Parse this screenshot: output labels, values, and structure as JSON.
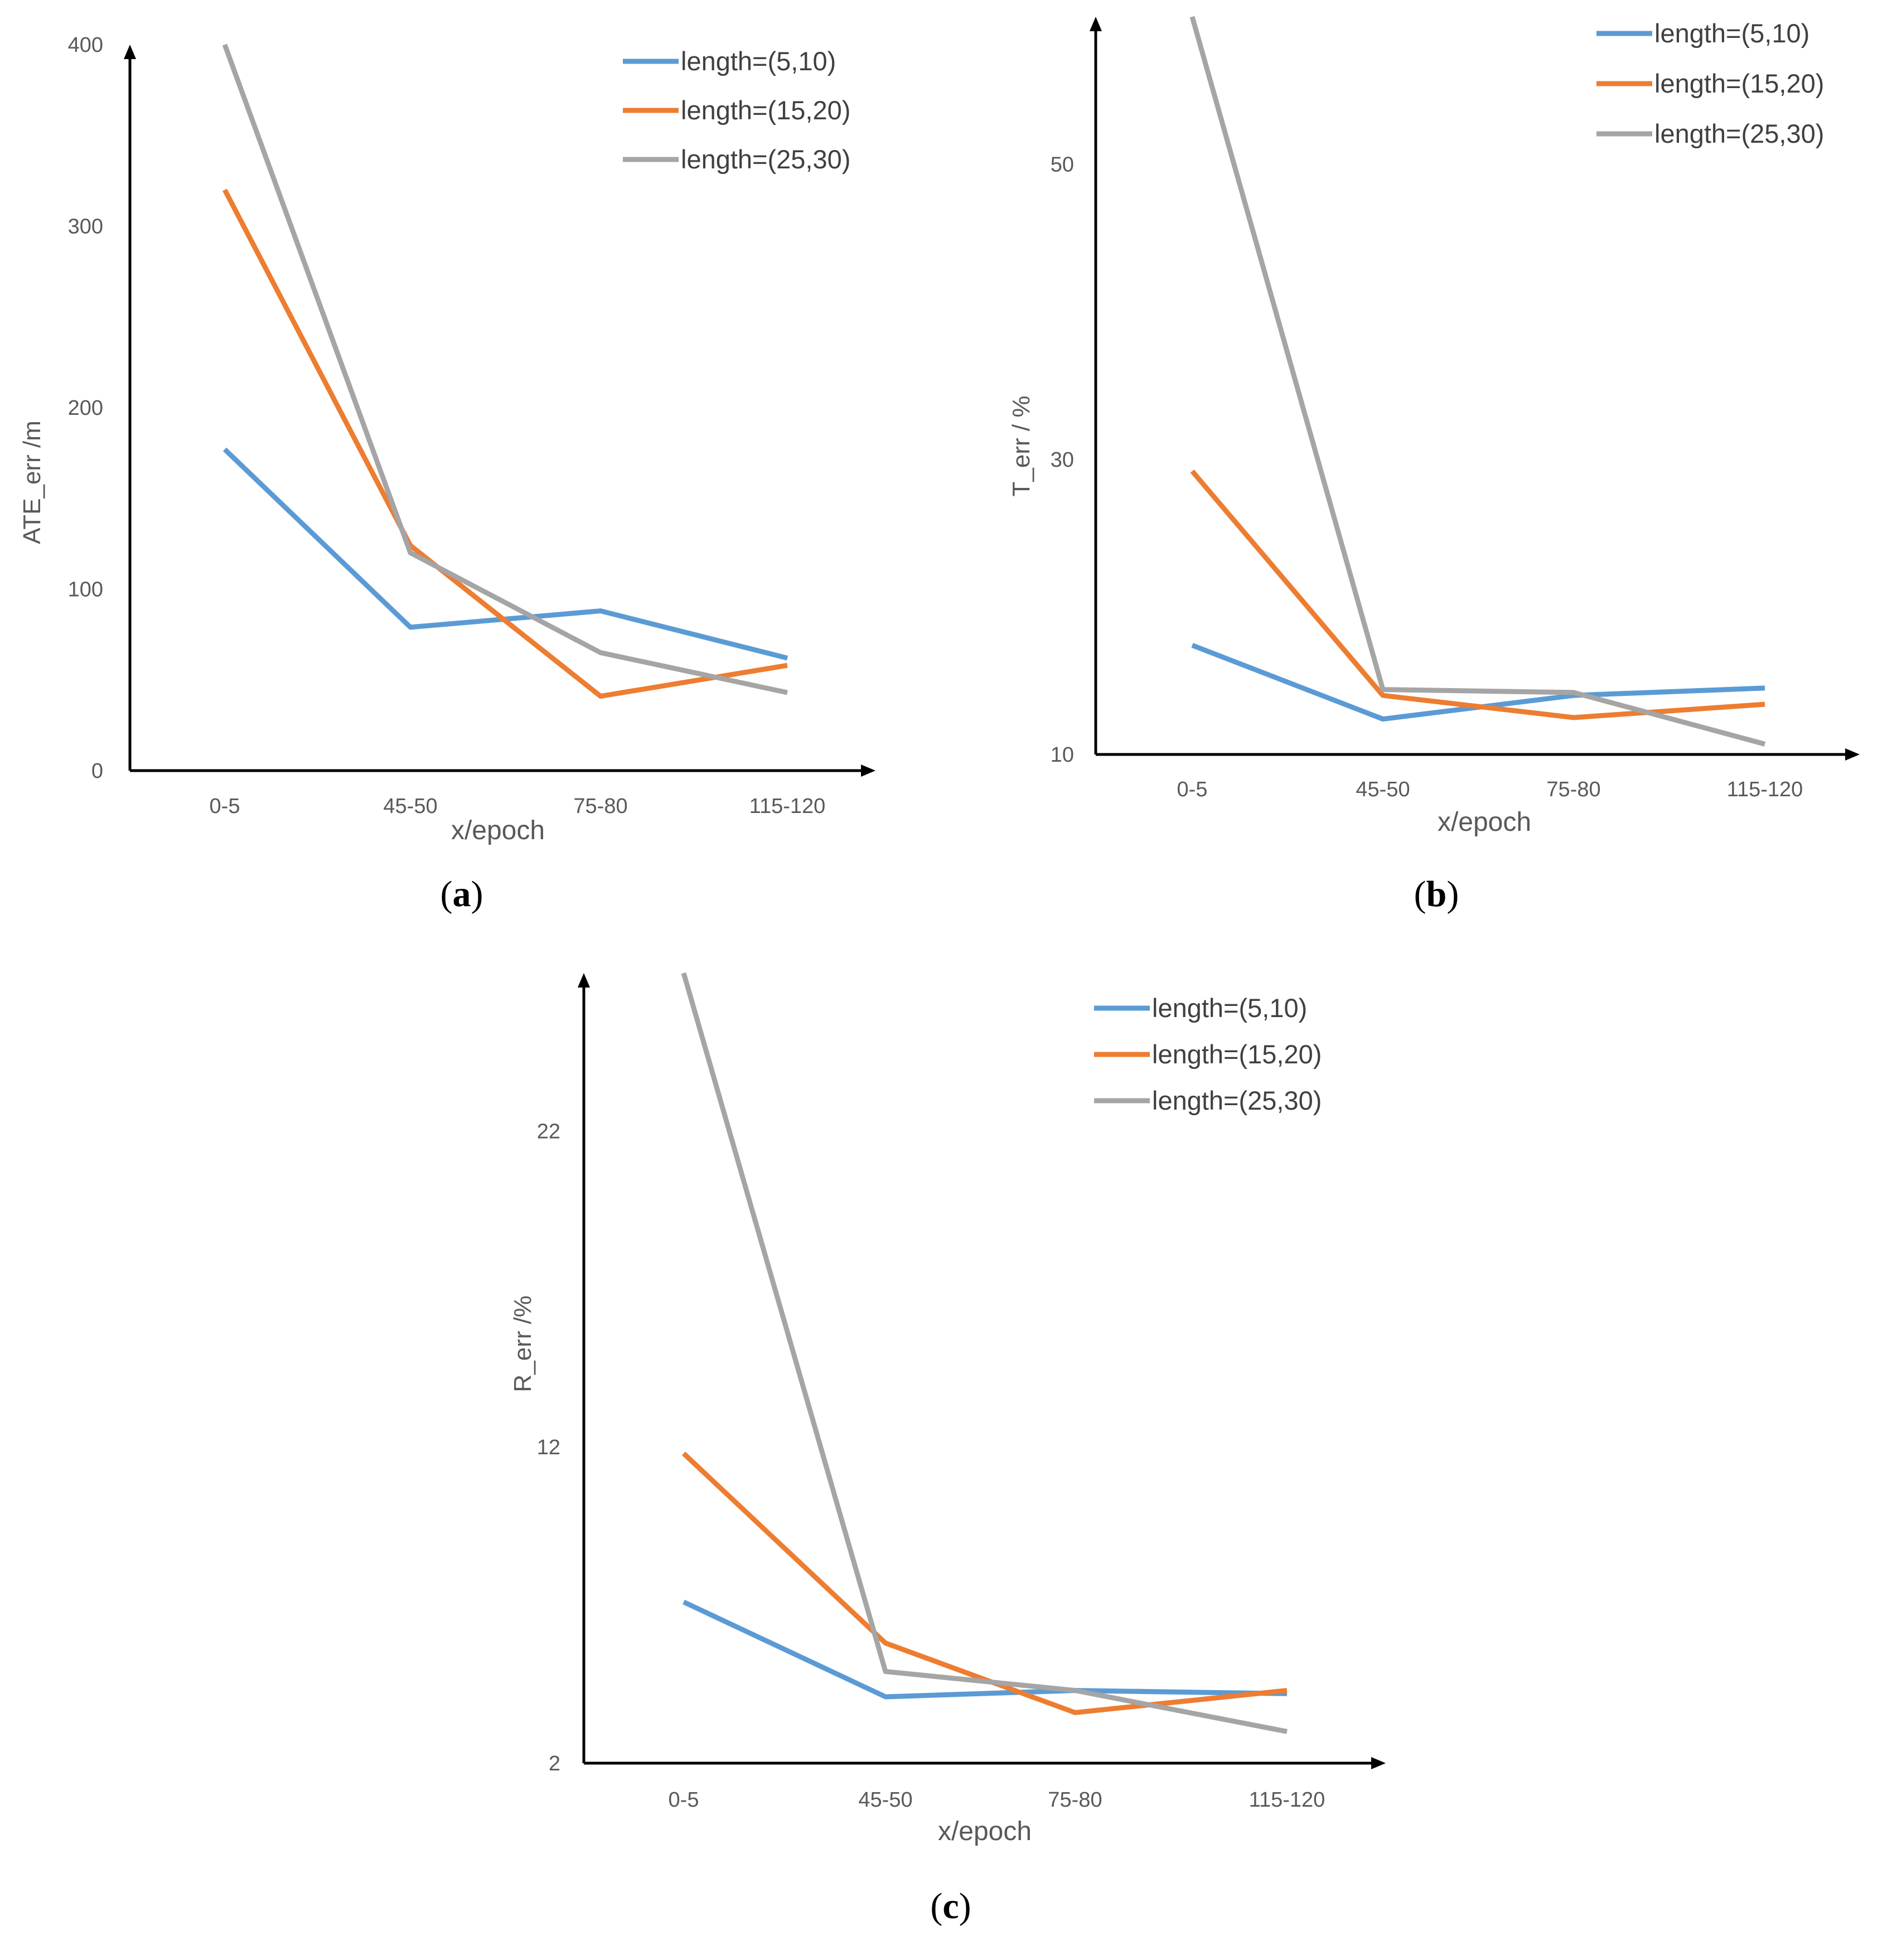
{
  "chart_data": [
    {
      "type": "line",
      "caption": "a",
      "title": "",
      "xlabel": "x/epoch",
      "ylabel": "ATE_err /m",
      "categories": [
        "0-5",
        "45-50",
        "75-80",
        "115-120"
      ],
      "ylim": [
        0,
        400
      ],
      "yticks": [
        "0",
        "100",
        "200",
        "300",
        "400"
      ],
      "legend_position": "top-right",
      "series": [
        {
          "name": "length=(5,10)",
          "color": "#5B9BD5",
          "values": [
            177,
            79,
            88,
            62
          ]
        },
        {
          "name": "length=(15,20)",
          "color": "#ED7D31",
          "values": [
            320,
            124,
            41,
            58
          ]
        },
        {
          "name": "length=(25,30)",
          "color": "#A5A5A5",
          "values": [
            400,
            120,
            65,
            43
          ]
        }
      ]
    },
    {
      "type": "line",
      "caption": "b",
      "title": "",
      "xlabel": "x/epoch",
      "ylabel": "T_err / %",
      "categories": [
        "0-5",
        "45-50",
        "75-80",
        "115-120"
      ],
      "ylim": [
        10,
        60
      ],
      "yticks": [
        "10",
        "30",
        "50"
      ],
      "legend_position": "top-right",
      "series": [
        {
          "name": "length=(5,10)",
          "color": "#5B9BD5",
          "values": [
            17.4,
            12.4,
            14.0,
            14.5
          ]
        },
        {
          "name": "length=(15,20)",
          "color": "#ED7D31",
          "values": [
            29.2,
            14.0,
            12.5,
            13.4
          ]
        },
        {
          "name": "length=(25,30)",
          "color": "#A5A5A5",
          "values": [
            60.0,
            14.4,
            14.2,
            10.7
          ]
        }
      ]
    },
    {
      "type": "line",
      "caption": "c",
      "title": "",
      "xlabel": "x/epoch",
      "ylabel": "R_err /%",
      "categories": [
        "0-5",
        "45-50",
        "75-80",
        "115-120"
      ],
      "ylim": [
        2,
        27
      ],
      "yticks": [
        "2",
        "12",
        "22"
      ],
      "legend_position": "top-right",
      "series": [
        {
          "name": "length=(5,10)",
          "color": "#5B9BD5",
          "values": [
            7.1,
            4.1,
            4.3,
            4.2
          ]
        },
        {
          "name": "length=(15,20)",
          "color": "#ED7D31",
          "values": [
            11.8,
            5.8,
            3.6,
            4.3
          ]
        },
        {
          "name": "length=(25,30)",
          "color": "#A5A5A5",
          "values": [
            27.0,
            4.9,
            4.3,
            3.0
          ]
        }
      ]
    }
  ]
}
